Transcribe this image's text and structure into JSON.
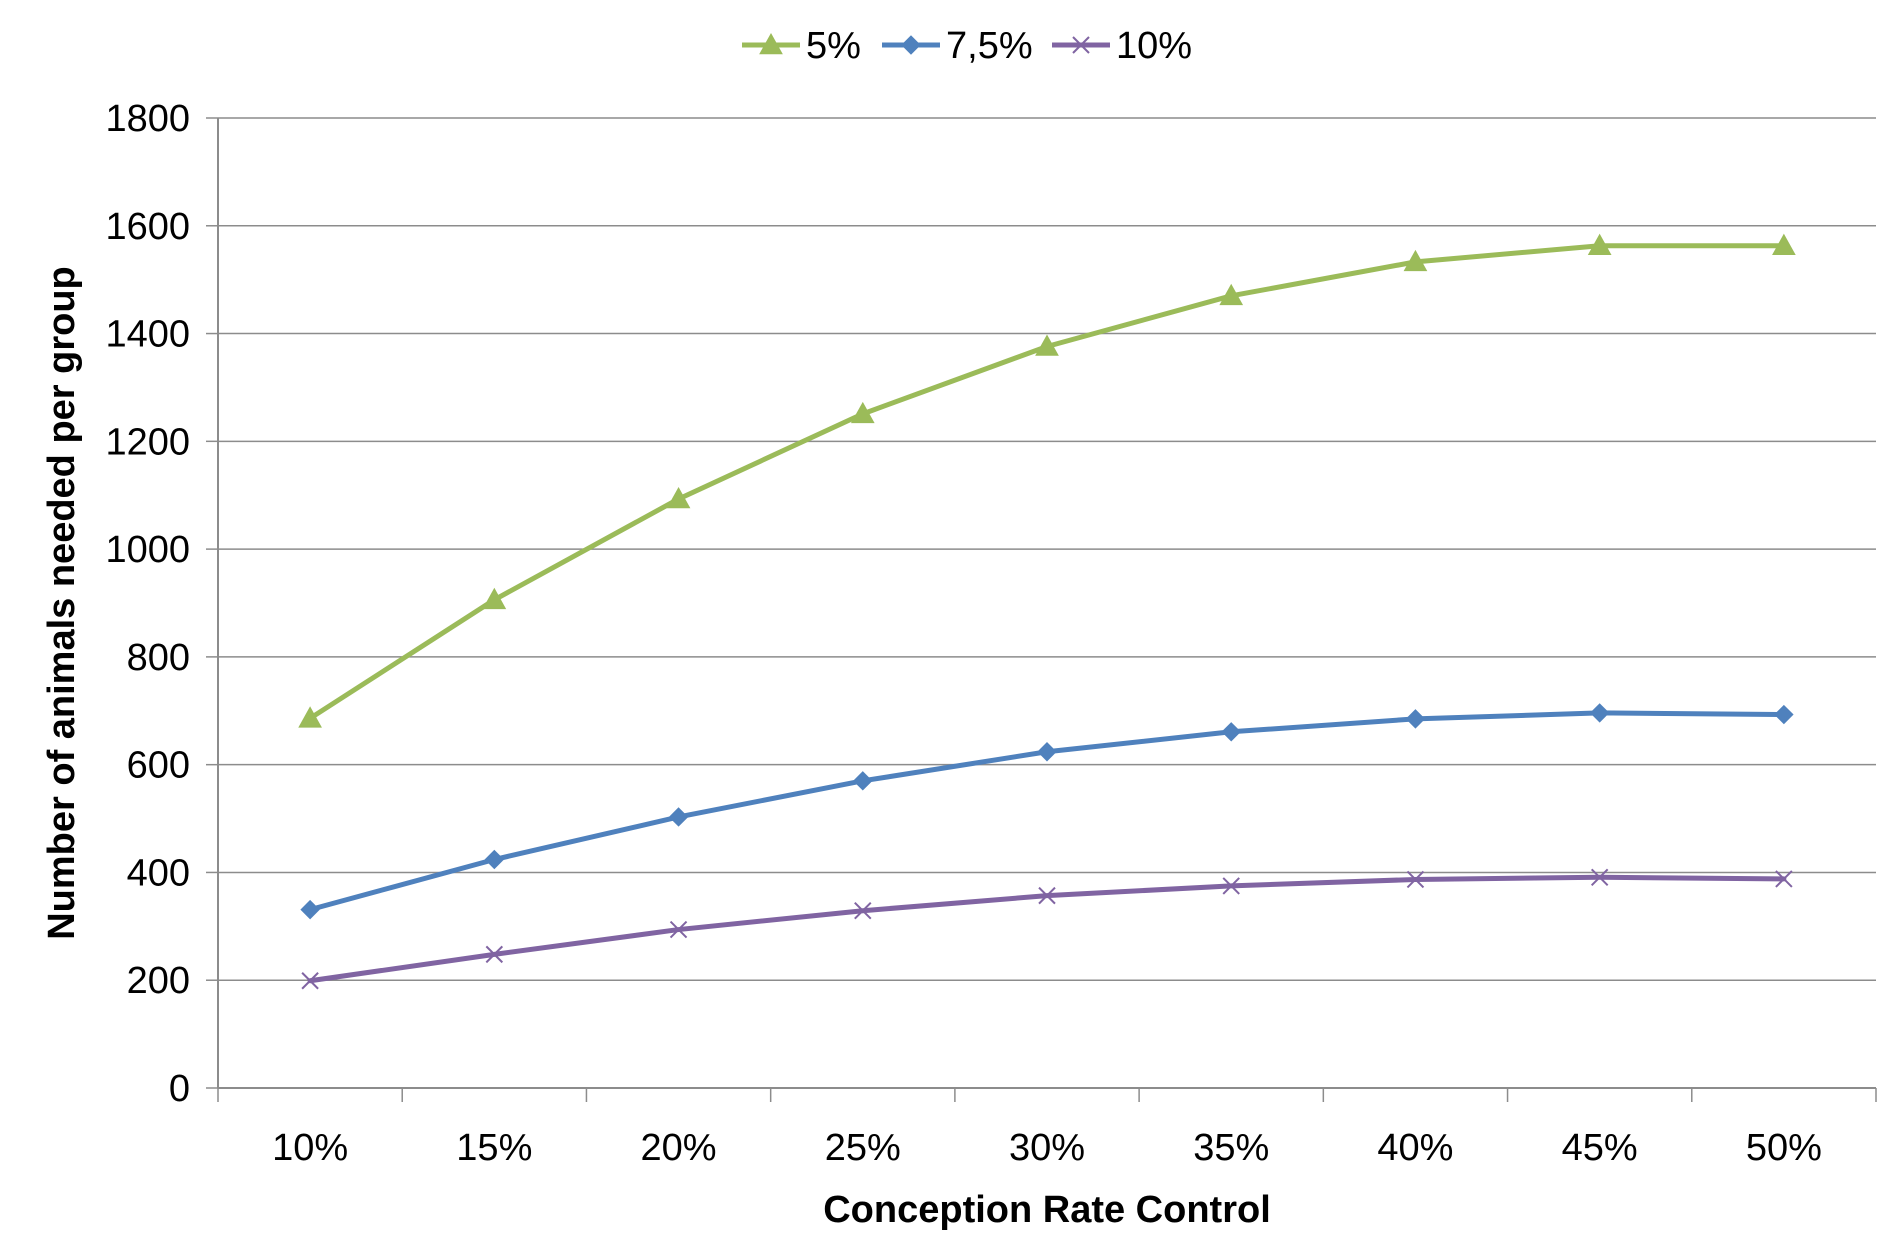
{
  "chart_data": {
    "type": "line",
    "title": "",
    "xlabel": "Conception Rate Control",
    "ylabel": "Number of animals needed per group",
    "categories": [
      "10%",
      "15%",
      "20%",
      "25%",
      "30%",
      "35%",
      "40%",
      "45%",
      "50%"
    ],
    "ylim": [
      0,
      1800
    ],
    "yticks": [
      0,
      200,
      400,
      600,
      800,
      1000,
      1200,
      1400,
      1600,
      1800
    ],
    "grid": true,
    "legend_position": "top",
    "series": [
      {
        "name": "5%",
        "color": "#9BBB59",
        "marker": "triangle",
        "values": [
          686,
          906,
          1093,
          1251,
          1376,
          1470,
          1533,
          1563,
          1563
        ]
      },
      {
        "name": "7,5%",
        "color": "#4F81BD",
        "marker": "diamond",
        "values": [
          331,
          424,
          503,
          570,
          624,
          661,
          685,
          696,
          693
        ]
      },
      {
        "name": "10%",
        "color": "#8064A2",
        "marker": "x",
        "values": [
          199,
          248,
          294,
          329,
          357,
          375,
          387,
          391,
          388
        ]
      }
    ]
  }
}
